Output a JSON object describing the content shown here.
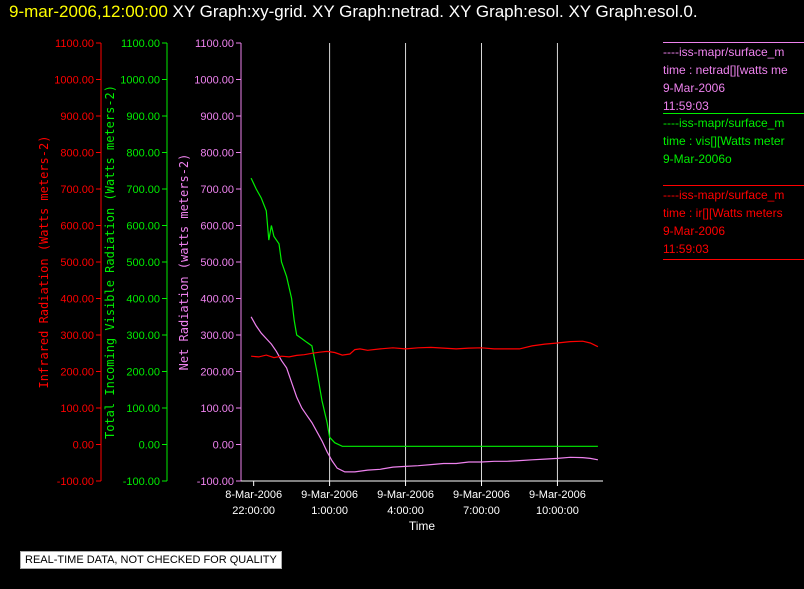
{
  "title": {
    "date": "9-mar-2006,12:00:00",
    "graphs": "XY Graph:xy-grid.  XY Graph:netrad.  XY Graph:esol.  XY Graph:esol.0."
  },
  "colors": {
    "infrared": "#ff0000",
    "visible": "#00ee00",
    "net": "#ee82ee",
    "grid": "#d9d9d9",
    "axis": "#ffffff"
  },
  "legend": [
    {
      "color": "#ee82ee",
      "lines": [
        "----iss-mapr/surface_m",
        "time : netrad[][watts me",
        "9-Mar-2006",
        "11:59:03"
      ]
    },
    {
      "color": "#00ee00",
      "lines": [
        "----iss-mapr/surface_m",
        "time : vis[][Watts meter",
        "9-Mar-2006o"
      ]
    },
    {
      "color": "#ff0000",
      "lines": [
        "----iss-mapr/surface_m",
        "time : ir[][Watts meters",
        "9-Mar-2006",
        "11:59:03"
      ]
    }
  ],
  "quality_note": "REAL-TIME DATA, NOT CHECKED FOR QUALITY",
  "chart_data": {
    "type": "line",
    "xlabel": "Time",
    "x_range_hours": [
      -2.5,
      11.8
    ],
    "x_ticks": [
      {
        "hour": -2,
        "line1": "8-Mar-2006",
        "line2": "22:00:00"
      },
      {
        "hour": 1,
        "line1": "9-Mar-2006",
        "line2": "1:00:00"
      },
      {
        "hour": 4,
        "line1": "9-Mar-2006",
        "line2": "4:00:00"
      },
      {
        "hour": 7,
        "line1": "9-Mar-2006",
        "line2": "7:00:00"
      },
      {
        "hour": 10,
        "line1": "9-Mar-2006",
        "line2": "10:00:00"
      }
    ],
    "ylim": [
      -100,
      1100
    ],
    "y_ticks": [
      1100,
      1000,
      900,
      800,
      700,
      600,
      500,
      400,
      300,
      200,
      100,
      0,
      -100
    ],
    "y_tick_labels": [
      "1100.00",
      "1000.00",
      "900.00",
      "800.00",
      "700.00",
      "600.00",
      "500.00",
      "400.00",
      "300.00",
      "200.00",
      "100.00",
      "0.00",
      "-100.00"
    ],
    "axes": [
      {
        "label": "Infrared Radiation (Watts meters-2)",
        "color": "#ff0000"
      },
      {
        "label": "Total Incoming Visible Radiation (Watts meters-2)",
        "color": "#00ee00"
      },
      {
        "label": "Net Radiation (watts meters-2)",
        "color": "#ee82ee"
      }
    ],
    "grid": "vertical lines at x ticks",
    "series": [
      {
        "key": "vis",
        "color": "#00ee00",
        "points": [
          [
            -2.1,
            730
          ],
          [
            -1.9,
            700
          ],
          [
            -1.7,
            675
          ],
          [
            -1.5,
            640
          ],
          [
            -1.4,
            560
          ],
          [
            -1.3,
            600
          ],
          [
            -1.2,
            570
          ],
          [
            -1.0,
            550
          ],
          [
            -0.9,
            500
          ],
          [
            -0.7,
            460
          ],
          [
            -0.5,
            400
          ],
          [
            -0.4,
            340
          ],
          [
            -0.3,
            300
          ],
          [
            -0.1,
            290
          ],
          [
            0.1,
            280
          ],
          [
            0.3,
            270
          ],
          [
            0.5,
            200
          ],
          [
            0.7,
            120
          ],
          [
            0.9,
            60
          ],
          [
            1.0,
            20
          ],
          [
            1.2,
            5
          ],
          [
            1.5,
            -5
          ],
          [
            2.0,
            -5
          ],
          [
            3.0,
            -5
          ],
          [
            4.0,
            -5
          ],
          [
            5.0,
            -5
          ],
          [
            6.0,
            -5
          ],
          [
            7.0,
            -5
          ],
          [
            8.0,
            -5
          ],
          [
            9.0,
            -5
          ],
          [
            10.0,
            -5
          ],
          [
            11.0,
            -5
          ],
          [
            11.6,
            -5
          ]
        ]
      },
      {
        "key": "net",
        "color": "#ee82ee",
        "points": [
          [
            -2.1,
            350
          ],
          [
            -1.9,
            325
          ],
          [
            -1.7,
            305
          ],
          [
            -1.5,
            290
          ],
          [
            -1.3,
            275
          ],
          [
            -1.1,
            255
          ],
          [
            -0.9,
            230
          ],
          [
            -0.7,
            210
          ],
          [
            -0.5,
            170
          ],
          [
            -0.3,
            130
          ],
          [
            -0.1,
            100
          ],
          [
            0.1,
            80
          ],
          [
            0.3,
            60
          ],
          [
            0.5,
            35
          ],
          [
            0.7,
            10
          ],
          [
            0.9,
            -20
          ],
          [
            1.1,
            -45
          ],
          [
            1.3,
            -65
          ],
          [
            1.6,
            -75
          ],
          [
            2.0,
            -75
          ],
          [
            2.5,
            -70
          ],
          [
            3.0,
            -68
          ],
          [
            3.5,
            -62
          ],
          [
            4.0,
            -60
          ],
          [
            4.5,
            -58
          ],
          [
            5.0,
            -55
          ],
          [
            5.5,
            -52
          ],
          [
            6.0,
            -52
          ],
          [
            6.5,
            -48
          ],
          [
            7.0,
            -48
          ],
          [
            7.5,
            -46
          ],
          [
            8.0,
            -46
          ],
          [
            8.5,
            -44
          ],
          [
            9.0,
            -42
          ],
          [
            9.5,
            -40
          ],
          [
            10.0,
            -38
          ],
          [
            10.5,
            -35
          ],
          [
            11.0,
            -36
          ],
          [
            11.3,
            -38
          ],
          [
            11.6,
            -42
          ]
        ]
      },
      {
        "key": "ir",
        "color": "#ff0000",
        "points": [
          [
            -2.1,
            242
          ],
          [
            -1.8,
            240
          ],
          [
            -1.5,
            245
          ],
          [
            -1.2,
            238
          ],
          [
            -0.9,
            242
          ],
          [
            -0.6,
            240
          ],
          [
            -0.3,
            244
          ],
          [
            0.0,
            246
          ],
          [
            0.3,
            250
          ],
          [
            0.6,
            253
          ],
          [
            0.9,
            255
          ],
          [
            1.2,
            252
          ],
          [
            1.5,
            245
          ],
          [
            1.8,
            248
          ],
          [
            2.0,
            260
          ],
          [
            2.2,
            262
          ],
          [
            2.5,
            258
          ],
          [
            3.0,
            262
          ],
          [
            3.5,
            265
          ],
          [
            4.0,
            262
          ],
          [
            4.5,
            265
          ],
          [
            5.0,
            266
          ],
          [
            5.5,
            264
          ],
          [
            6.0,
            262
          ],
          [
            6.5,
            264
          ],
          [
            7.0,
            265
          ],
          [
            7.5,
            262
          ],
          [
            8.0,
            262
          ],
          [
            8.5,
            262
          ],
          [
            9.0,
            270
          ],
          [
            9.5,
            275
          ],
          [
            10.0,
            278
          ],
          [
            10.5,
            282
          ],
          [
            11.0,
            283
          ],
          [
            11.3,
            278
          ],
          [
            11.6,
            268
          ]
        ]
      }
    ]
  }
}
